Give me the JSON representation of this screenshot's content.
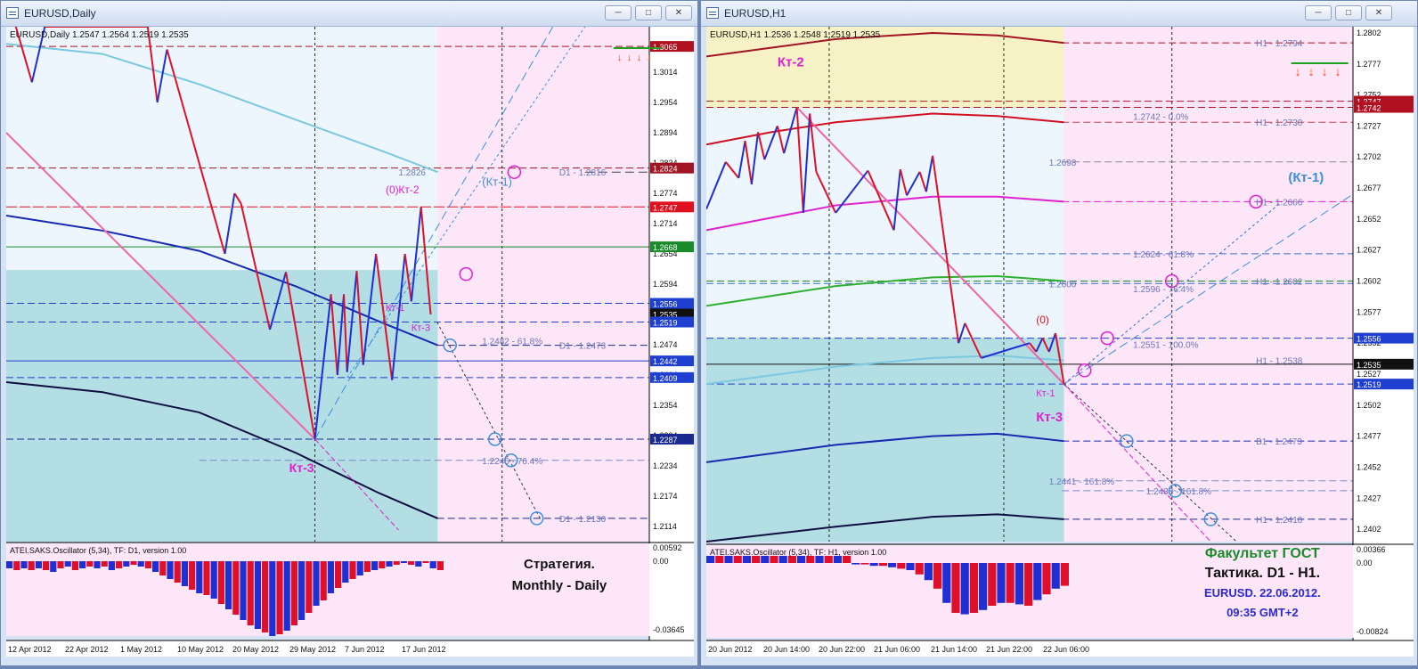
{
  "colors": {
    "desktop": "#6b87b8",
    "bg_left": "#ecf6fc",
    "bg_future": "#fde6f7",
    "teal_zone": "#b3dee4",
    "yellow_zone": "#f7f1c6",
    "bull": "#1f2fd4",
    "bear": "#e0102a",
    "magenta": "#e020d0",
    "pink": "#f065a8",
    "lightblue": "#3a8fe0"
  },
  "left": {
    "title": "EURUSD,Daily",
    "info": "EURUSD,Daily  1.2547 1.2564 1.2519 1.2535",
    "buttons": [
      "minimize-icon",
      "maximize-icon",
      "close-icon"
    ],
    "price_labels": [
      {
        "p": 1.3065,
        "t": "1.3065",
        "bg": "#b01020",
        "fg": "#ffffff"
      },
      {
        "p": 1.2824,
        "t": "1.2824",
        "bg": "#a01424",
        "fg": "#ffffff"
      },
      {
        "p": 1.2747,
        "t": "1.2747",
        "bg": "#e01020",
        "fg": "#ffffff"
      },
      {
        "p": 1.2668,
        "t": "1.2668",
        "bg": "#1a8a2a",
        "fg": "#ffffff"
      },
      {
        "p": 1.2556,
        "t": "1.2556",
        "bg": "#1f3fd0",
        "fg": "#ffffff"
      },
      {
        "p": 1.2535,
        "t": "1.2535",
        "bg": "#101010",
        "fg": "#ffffff"
      },
      {
        "p": 1.2519,
        "t": "1.2519",
        "bg": "#1f3fd0",
        "fg": "#ffffff"
      },
      {
        "p": 1.2442,
        "t": "1.2442",
        "bg": "#1f3fd0",
        "fg": "#ffffff"
      },
      {
        "p": 1.2409,
        "t": "1.2409",
        "bg": "#1f3fd0",
        "fg": "#ffffff"
      },
      {
        "p": 1.2287,
        "t": "1.2287",
        "bg": "#1a2a90",
        "fg": "#ffffff"
      }
    ],
    "axis_ticks": [
      "1.3014",
      "1.2954",
      "1.2894",
      "1.2834",
      "1.2774",
      "1.2714",
      "1.2654",
      "1.2594",
      "1.2534",
      "1.2474",
      "1.2414",
      "1.2354",
      "1.2294",
      "1.2234",
      "1.2174",
      "1.2114"
    ],
    "level_texts": [
      {
        "t": "1.2826",
        "p": 1.2816,
        "x": 0.61
      },
      {
        "t": "D1 - 1.2816",
        "p": 1.2816,
        "x": 0.86
      },
      {
        "t": "1.2482 - 61.8%",
        "p": 1.2482,
        "x": 0.74
      },
      {
        "t": "D1 - 1.2473",
        "p": 1.2473,
        "x": 0.86
      },
      {
        "t": "1.2245 - 76.4%",
        "p": 1.2245,
        "x": 0.74
      },
      {
        "t": "D1 - 1.2130",
        "p": 1.213,
        "x": 0.86
      }
    ],
    "annotations": [
      {
        "t": "(0)",
        "p": 1.2774,
        "x": 0.59,
        "c": "#e020d0",
        "s": 12,
        "b": false
      },
      {
        "t": "Кт-2",
        "p": 1.2774,
        "x": 0.61,
        "c": "#e020d0",
        "s": 12,
        "b": false
      },
      {
        "t": "(Кт-1)",
        "p": 1.2789,
        "x": 0.74,
        "c": "#3a8fe0",
        "s": 13,
        "b": false
      },
      {
        "t": "Кт-1",
        "p": 1.2541,
        "x": 0.59,
        "c": "#e020d0",
        "s": 11,
        "b": false
      },
      {
        "t": "Кт-3",
        "p": 1.2501,
        "x": 0.63,
        "c": "#e020d0",
        "s": 11,
        "b": false
      },
      {
        "t": "Кт-3",
        "p": 1.2222,
        "x": 0.44,
        "c": "#e020d0",
        "s": 14,
        "b": true
      }
    ],
    "dates": [
      "12 Apr 2012",
      "22 Apr 2012",
      "1 May 2012",
      "10 May 2012",
      "20 May 2012",
      "29 May 2012",
      "7 Jun 2012",
      "17 Jun 2012"
    ],
    "osc_title": "ATEI.SAKS.Oscillator (5,34), TF: D1,  version 1.00",
    "osc_axis": [
      "0.00592",
      "0.00",
      "-0.03645"
    ],
    "caption": [
      "Стратегия.",
      "Monthly - Daily"
    ]
  },
  "right": {
    "title": "EURUSD,H1",
    "info": "EURUSD,H1  1.2536 1.2548 1.2519 1.2535",
    "buttons": [
      "minimize-icon",
      "maximize-icon",
      "close-icon"
    ],
    "price_labels": [
      {
        "p": 1.2747,
        "t": "1.2747",
        "bg": "#b01020",
        "fg": "#ffffff"
      },
      {
        "p": 1.2742,
        "t": "1.2742",
        "bg": "#b01020",
        "fg": "#ffffff"
      },
      {
        "p": 1.2556,
        "t": "1.2556",
        "bg": "#1f3fd0",
        "fg": "#ffffff"
      },
      {
        "p": 1.2535,
        "t": "1.2535",
        "bg": "#101010",
        "fg": "#ffffff"
      },
      {
        "p": 1.2519,
        "t": "1.2519",
        "bg": "#1f3fd0",
        "fg": "#ffffff"
      }
    ],
    "axis_ticks": [
      "1.2802",
      "1.2777",
      "1.2752",
      "1.2727",
      "1.2702",
      "1.2677",
      "1.2652",
      "1.2627",
      "1.2602",
      "1.2577",
      "1.2552",
      "1.2527",
      "1.2502",
      "1.2477",
      "1.2452",
      "1.2427",
      "1.2402"
    ],
    "level_texts": [
      {
        "t": "H1 - 1.2794",
        "p": 1.2794,
        "x": 0.85
      },
      {
        "t": "1.2742 - 0.0%",
        "p": 1.2735,
        "x": 0.66
      },
      {
        "t": "H1 - 1.2730",
        "p": 1.273,
        "x": 0.85
      },
      {
        "t": "1.2698",
        "p": 1.2698,
        "x": 0.53
      },
      {
        "t": "H1 - 1.2666",
        "p": 1.2666,
        "x": 0.85
      },
      {
        "t": "1.2624 - 61.8%",
        "p": 1.2624,
        "x": 0.66
      },
      {
        "t": "1.2600",
        "p": 1.26,
        "x": 0.53
      },
      {
        "t": "H1 - 1.2602",
        "p": 1.2602,
        "x": 0.85
      },
      {
        "t": "1.2596 - 76.4%",
        "p": 1.2596,
        "x": 0.66
      },
      {
        "t": "1.2551 - 100.0%",
        "p": 1.2551,
        "x": 0.66
      },
      {
        "t": "H1 - 1.2538",
        "p": 1.2538,
        "x": 0.85
      },
      {
        "t": "B1 - 1.2473",
        "p": 1.2473,
        "x": 0.85
      },
      {
        "t": "1.2441 - 161.8%",
        "p": 1.2441,
        "x": 0.53
      },
      {
        "t": "1.2433 - 161.8%",
        "p": 1.2433,
        "x": 0.68
      },
      {
        "t": "H1 - 1.2410",
        "p": 1.241,
        "x": 0.85
      }
    ],
    "annotations": [
      {
        "t": "Кт-2",
        "p": 1.2775,
        "x": 0.11,
        "c": "#e020d0",
        "s": 15,
        "b": true
      },
      {
        "t": "(Кт-1)",
        "p": 1.2682,
        "x": 0.9,
        "c": "#3a8fe0",
        "s": 15,
        "b": true
      },
      {
        "t": "(0)",
        "p": 1.2568,
        "x": 0.51,
        "c": "#e01020",
        "s": 12,
        "b": false
      },
      {
        "t": "Кт-1",
        "p": 1.2509,
        "x": 0.51,
        "c": "#e020d0",
        "s": 11,
        "b": false
      },
      {
        "t": "Кт-3",
        "p": 1.2489,
        "x": 0.51,
        "c": "#e020d0",
        "s": 15,
        "b": true
      }
    ],
    "dates": [
      "20 Jun 2012",
      "20 Jun 14:00",
      "20 Jun 22:00",
      "21 Jun 06:00",
      "21 Jun 14:00",
      "21 Jun 22:00",
      "22 Jun 06:00"
    ],
    "osc_title": "ATEI.SAKS.Oscillator (5,34), TF: H1,  version 1.00",
    "osc_axis": [
      "0.00366",
      "0.00",
      "-0.00824"
    ],
    "caption": [
      "Факультет ГОСТ",
      "Тактика. D1 - H1.",
      "EURUSD. 22.06.2012.",
      "09:35  GMT+2"
    ]
  }
}
